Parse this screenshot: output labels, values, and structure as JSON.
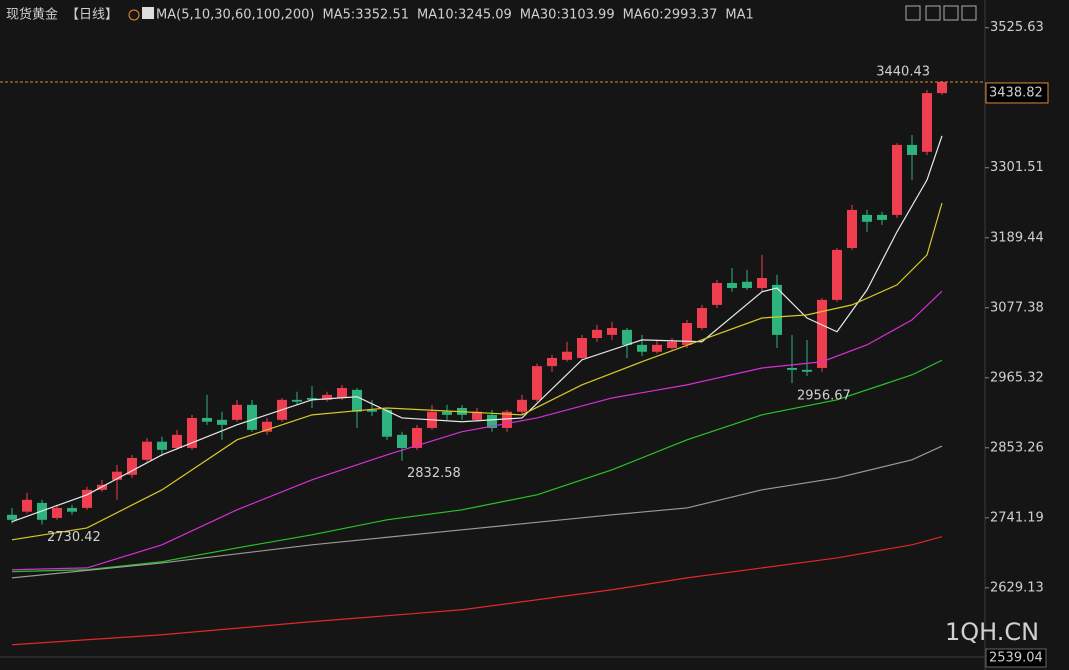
{
  "chart_data": {
    "type": "candlestick",
    "title": "现货黄金",
    "period": "【日线】",
    "indicator": "MA(5,10,30,60,100,200)",
    "extra_legend": "MA1",
    "up_color": "#ee3e4f",
    "down_color": "#2eb37e",
    "open": [
      2746,
      2751,
      2765,
      2741,
      2757,
      2757,
      2786,
      2802,
      2810,
      2834,
      2863,
      2853,
      2853,
      2901,
      2898,
      2898,
      2922,
      2879,
      2898,
      2930,
      2933,
      2930,
      2933,
      2946,
      2914,
      2914,
      2874,
      2853,
      2885,
      2911,
      2917,
      2898,
      2906,
      2885,
      2911,
      2930,
      2984,
      2994,
      2997,
      3029,
      3034,
      3042,
      3018,
      3007,
      3013,
      3018,
      3045,
      3082,
      3117,
      3119,
      3109,
      3114,
      2981,
      2978,
      2981,
      3090,
      3173,
      3226,
      3226,
      3226,
      3338,
      3327,
      3421
    ],
    "high": [
      2757,
      2781,
      2770,
      2762,
      2762,
      2791,
      2802,
      2826,
      2842,
      2869,
      2871,
      2882,
      2906,
      2938,
      2911,
      2930,
      2930,
      2901,
      2933,
      2943,
      2952,
      2943,
      2954,
      2949,
      2930,
      2917,
      2879,
      2890,
      2922,
      2922,
      2922,
      2917,
      2914,
      2914,
      2938,
      2988,
      3002,
      3023,
      3034,
      3050,
      3055,
      3045,
      3034,
      3026,
      3029,
      3058,
      3082,
      3122,
      3141,
      3138,
      3162,
      3130,
      3034,
      3026,
      3093,
      3173,
      3242,
      3234,
      3231,
      3341,
      3354,
      3426,
      3440.43
    ],
    "low": [
      2732,
      2748,
      2730.42,
      2738,
      2746,
      2754,
      2783,
      2770,
      2805,
      2831,
      2840,
      2850,
      2850,
      2890,
      2866,
      2895,
      2879,
      2874,
      2895,
      2922,
      2917,
      2927,
      2930,
      2885,
      2904,
      2866,
      2832.58,
      2850,
      2882,
      2898,
      2898,
      2895,
      2879,
      2879,
      2906,
      2927,
      2975,
      2991,
      2994,
      3023,
      3026,
      2997,
      3000,
      3004,
      3010,
      3013,
      3042,
      3077,
      3103,
      3106,
      3103,
      3013,
      2956.67,
      2968,
      2975,
      3087,
      3170,
      3199,
      3210,
      3221,
      3282,
      3322,
      3418
    ],
    "close": [
      2738,
      2770,
      2738,
      2757,
      2751,
      2786,
      2794,
      2815,
      2837,
      2863,
      2850,
      2874,
      2901,
      2895,
      2890,
      2922,
      2882,
      2895,
      2930,
      2927,
      2930,
      2938,
      2949,
      2911,
      2911,
      2871,
      2853,
      2885,
      2911,
      2906,
      2906,
      2911,
      2885,
      2911,
      2930,
      2984,
      2997,
      3007,
      3029,
      3042,
      3045,
      3018,
      3007,
      3018,
      3023,
      3053,
      3077,
      3117,
      3109,
      3109,
      3125,
      3034,
      2978,
      2975,
      3090,
      3170,
      3234,
      3215,
      3218,
      3338,
      3322,
      3421,
      3438.82
    ],
    "series": [
      {
        "name": "MA5:3352.51",
        "color": "#e8e8e8",
        "x": [
          0,
          5,
          10,
          15,
          20,
          23,
          26,
          30,
          34,
          38,
          42,
          46,
          50,
          51,
          53,
          55,
          57,
          59,
          61,
          62
        ],
        "values": [
          2735,
          2778,
          2842,
          2890,
          2930,
          2935,
          2901,
          2895,
          2901,
          2994,
          3026,
          3023,
          3103,
          3109,
          3061,
          3039,
          3106,
          3199,
          3282,
          3352.51
        ]
      },
      {
        "name": "MA10:3245.09",
        "color": "#d8c828",
        "x": [
          0,
          5,
          10,
          15,
          20,
          25,
          30,
          34,
          38,
          42,
          46,
          50,
          53,
          56,
          59,
          61,
          62
        ],
        "values": [
          2706,
          2725,
          2786,
          2866,
          2906,
          2917,
          2911,
          2906,
          2954,
          2991,
          3026,
          3061,
          3066,
          3082,
          3114,
          3162,
          3245.09
        ]
      },
      {
        "name": "MA30:3103.99",
        "color": "#d62fd6",
        "x": [
          0,
          5,
          10,
          15,
          20,
          25,
          30,
          35,
          40,
          45,
          50,
          54,
          57,
          60,
          62
        ],
        "values": [
          2658,
          2661,
          2698,
          2754,
          2802,
          2842,
          2879,
          2901,
          2933,
          2954,
          2981,
          2991,
          3018,
          3058,
          3103.99
        ]
      },
      {
        "name": "MA60:2993.37",
        "color": "#27c427",
        "x": [
          0,
          5,
          10,
          15,
          20,
          25,
          30,
          35,
          40,
          45,
          50,
          55,
          60,
          62
        ],
        "values": [
          2655,
          2658,
          2671,
          2693,
          2714,
          2738,
          2754,
          2778,
          2818,
          2866,
          2906,
          2930,
          2970,
          2993.37
        ]
      },
      {
        "color": "#9a9a9a",
        "x": [
          0,
          10,
          20,
          30,
          40,
          45,
          50,
          55,
          60,
          62
        ],
        "values": [
          2645,
          2669,
          2698,
          2722,
          2746,
          2757,
          2786,
          2805,
          2834,
          2856
        ]
      },
      {
        "color": "#e02828",
        "x": [
          0,
          10,
          20,
          30,
          40,
          45,
          50,
          55,
          60,
          62
        ],
        "values": [
          2538,
          2554,
          2575,
          2594,
          2626,
          2645,
          2661,
          2677,
          2698,
          2711
        ]
      }
    ],
    "annotations": [
      {
        "x": 2,
        "y": 2730.42
      },
      {
        "x": 26,
        "y": 2832.58
      },
      {
        "x": 52,
        "y": 2956.67
      },
      {
        "x": 62,
        "y": 3440.43
      }
    ],
    "low_label_color": "#5fc79a",
    "high_label_color": "#ee4f5c",
    "last_price": 3438.82,
    "last_price_color": "#d98a3a",
    "ylim": [
      2520,
      3570
    ],
    "yticks": [
      3525.63,
      3301.51,
      3189.44,
      3077.38,
      2965.32,
      2853.26,
      2741.19,
      2629.13
    ],
    "bottom_label": "2539.04",
    "watermark": "1QH.CN"
  }
}
